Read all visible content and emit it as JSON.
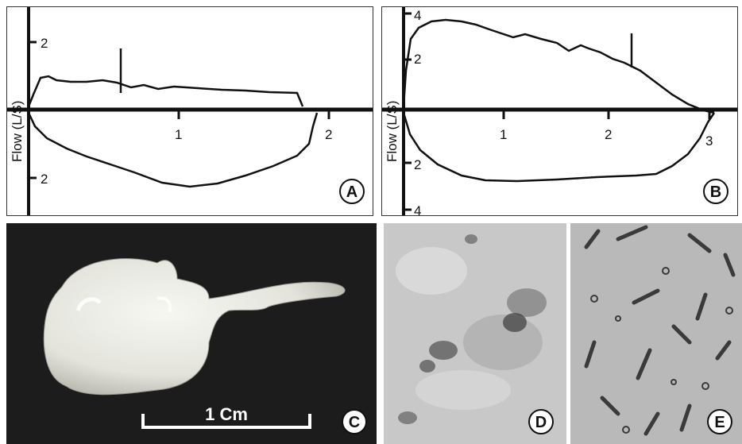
{
  "figure": {
    "panel_a": {
      "letter": "A",
      "ylabel": "Flow (L/S)",
      "y_ticks": [
        "2",
        "2"
      ],
      "x_ticks": [
        "1",
        "2"
      ]
    },
    "panel_b": {
      "letter": "B",
      "ylabel": "Flow (L/S)",
      "y_ticks": [
        "4",
        "2",
        "2",
        "4"
      ],
      "x_ticks": [
        "1",
        "2",
        "3"
      ]
    },
    "panel_c": {
      "letter": "C",
      "scale_label": "1 Cm"
    },
    "panel_d": {
      "letter": "D"
    },
    "panel_e": {
      "letter": "E"
    }
  },
  "colors": {
    "ink": "#111111",
    "photo_background": "#1a1a1a",
    "specimen": "#e8e8e2",
    "histology_light": "#c6c6c6",
    "stain_dark": "#3a3a3a"
  }
}
